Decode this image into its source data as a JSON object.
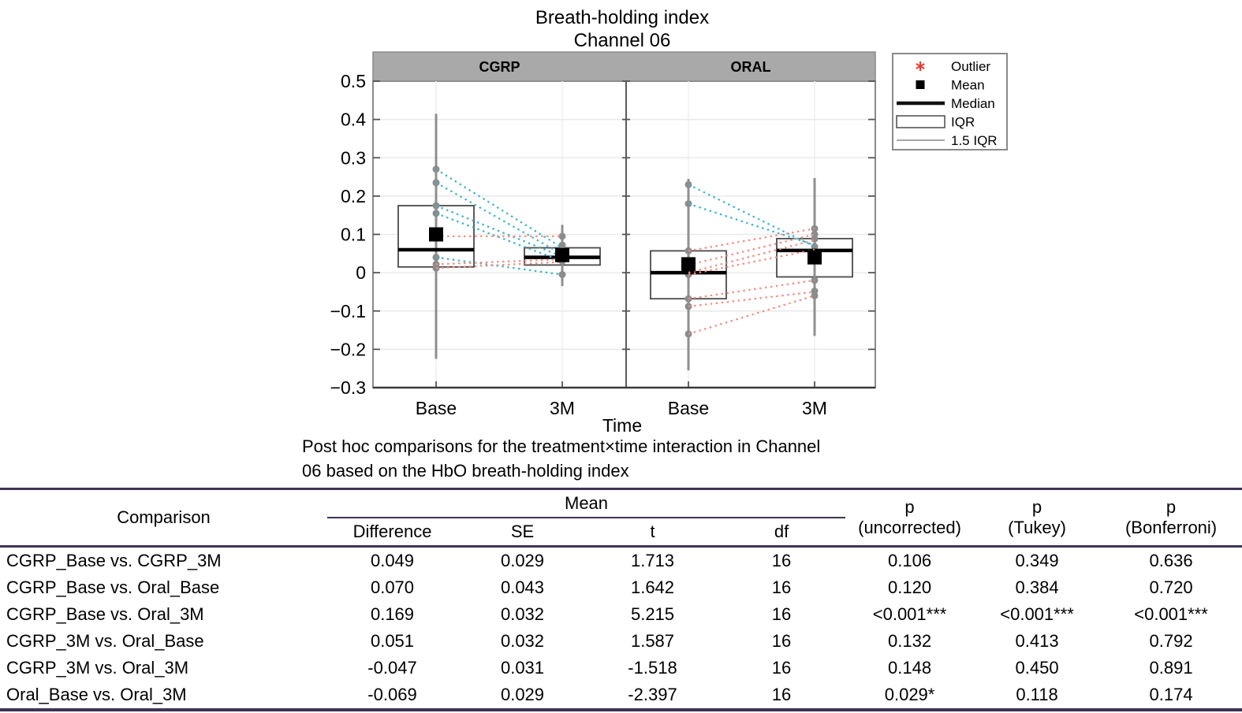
{
  "chart_data": {
    "type": "boxplot",
    "title": "Breath-holding index",
    "subtitle": "Channel 06",
    "xlabel": "Time",
    "ylim": [
      -0.3,
      0.5
    ],
    "yticks": [
      0.5,
      0.4,
      0.3,
      0.2,
      0.1,
      0,
      -0.1,
      -0.2,
      -0.3
    ],
    "ytick_labels": [
      "0.5",
      "0.4",
      "0.3",
      "0.2",
      "0.1",
      "0",
      "−0.1",
      "−0.2",
      "−0.3"
    ],
    "categories": [
      "Base",
      "3M"
    ],
    "grid": true,
    "legend_position": "outside-top-right",
    "panels": [
      {
        "label": "CGRP",
        "boxes": [
          {
            "category": "Base",
            "q1": 0.015,
            "median": 0.06,
            "q3": 0.175,
            "mean": 0.1,
            "whisker_low": -0.225,
            "whisker_high": 0.415,
            "points": [
              0.27,
              0.235,
              0.175,
              0.155,
              0.04,
              0.022,
              0.012
            ]
          },
          {
            "category": "3M",
            "q1": 0.02,
            "median": 0.04,
            "q3": 0.065,
            "mean": 0.046,
            "whisker_low": -0.035,
            "whisker_high": 0.125,
            "points": [
              0.095,
              0.072,
              0.05,
              0.03,
              -0.005
            ]
          }
        ],
        "pair_lines": [
          {
            "from": 0.27,
            "to": 0.065,
            "trend": "down"
          },
          {
            "from": 0.235,
            "to": 0.048,
            "trend": "down"
          },
          {
            "from": 0.175,
            "to": 0.042,
            "trend": "down"
          },
          {
            "from": 0.155,
            "to": 0.03,
            "trend": "down"
          },
          {
            "from": 0.04,
            "to": -0.005,
            "trend": "down"
          },
          {
            "from": 0.095,
            "to": 0.095,
            "trend": "up"
          },
          {
            "from": 0.022,
            "to": 0.035,
            "trend": "up"
          },
          {
            "from": 0.012,
            "to": 0.028,
            "trend": "up"
          }
        ]
      },
      {
        "label": "ORAL",
        "boxes": [
          {
            "category": "Base",
            "q1": -0.068,
            "median": 0.0,
            "q3": 0.057,
            "mean": 0.022,
            "whisker_low": -0.255,
            "whisker_high": 0.245,
            "points": [
              0.23,
              0.18,
              0.057,
              0.005,
              -0.005,
              -0.068,
              -0.088,
              -0.16
            ]
          },
          {
            "category": "3M",
            "q1": -0.011,
            "median": 0.058,
            "q3": 0.089,
            "mean": 0.04,
            "whisker_low": -0.165,
            "whisker_high": 0.247,
            "points": [
              0.115,
              0.1,
              0.088,
              0.068,
              -0.02,
              -0.048,
              -0.06
            ]
          }
        ],
        "pair_lines": [
          {
            "from": 0.23,
            "to": 0.068,
            "trend": "down"
          },
          {
            "from": 0.18,
            "to": 0.072,
            "trend": "down"
          },
          {
            "from": 0.057,
            "to": 0.115,
            "trend": "up"
          },
          {
            "from": 0.02,
            "to": 0.1,
            "trend": "up"
          },
          {
            "from": 0.0,
            "to": 0.085,
            "trend": "up"
          },
          {
            "from": -0.005,
            "to": 0.06,
            "trend": "up"
          },
          {
            "from": -0.068,
            "to": -0.02,
            "trend": "up"
          },
          {
            "from": -0.088,
            "to": -0.05,
            "trend": "up"
          },
          {
            "from": -0.16,
            "to": -0.06,
            "trend": "up"
          }
        ]
      }
    ],
    "legend": {
      "items": [
        {
          "symbol": "outlier-asterisk",
          "label": "Outlier"
        },
        {
          "symbol": "mean-square",
          "label": "Mean"
        },
        {
          "symbol": "median-line",
          "label": "Median"
        },
        {
          "symbol": "iqr-box",
          "label": "IQR"
        },
        {
          "symbol": "whisker-line",
          "label": "1.5 IQR"
        }
      ]
    },
    "colors": {
      "trend_down": "#3cb4c7",
      "trend_up": "#f18e82",
      "point": "#8c8c8c",
      "whisker": "#8f8f8f",
      "box_stroke": "#4a4a4a",
      "median": "#000000",
      "mean": "#000000",
      "strip_fill": "#a9a9a9",
      "grid": "#e9e9e9",
      "axis": "#8a8a8a",
      "tick": "#555555",
      "outlier_red": "#e8392f",
      "legend_text": "#1f2c4d"
    }
  },
  "table": {
    "caption": {
      "line1": "Post hoc comparisons for the treatment×time interaction in Channel",
      "line2": "06 based on the HbO breath-holding index"
    },
    "rule_color": "#3f3356",
    "headers": {
      "comparison": "Comparison",
      "mean_group": "Mean",
      "difference": "Difference",
      "se": "SE",
      "t": "t",
      "df": "df",
      "p_uncorrected_1": "p",
      "p_uncorrected_2": "(uncorrected)",
      "p_tukey_1": "p",
      "p_tukey_2": "(Tukey)",
      "p_bonferroni_1": "p",
      "p_bonferroni_2": "(Bonferroni)"
    },
    "rows": [
      [
        "CGRP_Base vs. CGRP_3M",
        "0.049",
        "0.029",
        "1.713",
        "16",
        "0.106",
        "0.349",
        "0.636"
      ],
      [
        "CGRP_Base vs. Oral_Base",
        "0.070",
        "0.043",
        "1.642",
        "16",
        "0.120",
        "0.384",
        "0.720"
      ],
      [
        "CGRP_Base vs. Oral_3M",
        "0.169",
        "0.032",
        "5.215",
        "16",
        "<0.001***",
        "<0.001***",
        "<0.001***"
      ],
      [
        "CGRP_3M vs. Oral_Base",
        "0.051",
        "0.032",
        "1.587",
        "16",
        "0.132",
        "0.413",
        "0.792"
      ],
      [
        "CGRP_3M vs. Oral_3M",
        "-0.047",
        "0.031",
        "-1.518",
        "16",
        "0.148",
        "0.450",
        "0.891"
      ],
      [
        "Oral_Base vs. Oral_3M",
        "-0.069",
        "0.029",
        "-2.397",
        "16",
        "0.029*",
        "0.118",
        "0.174"
      ]
    ]
  }
}
